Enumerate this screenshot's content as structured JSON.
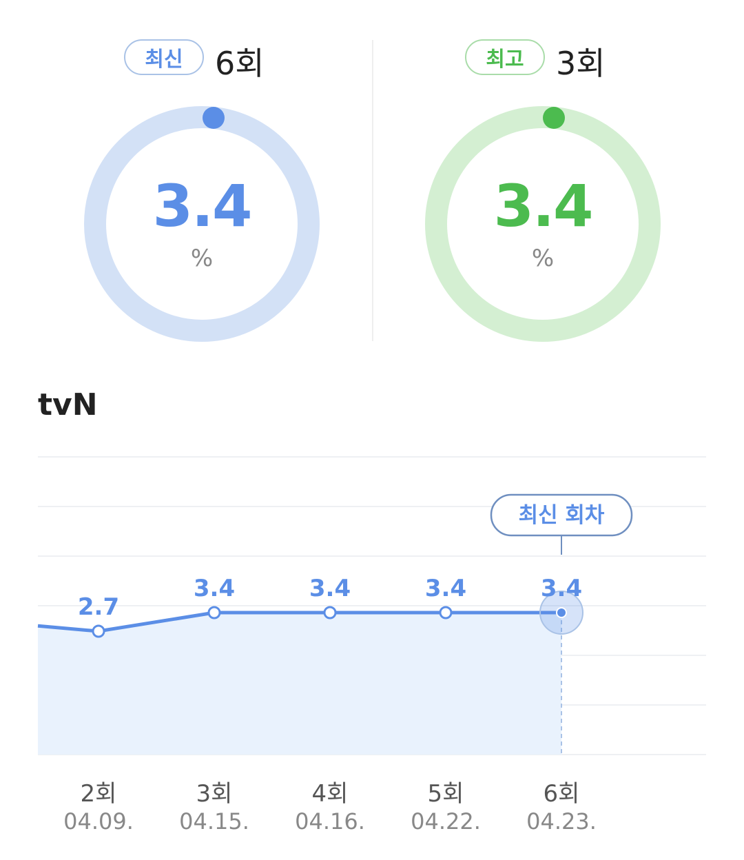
{
  "latest": {
    "badge": "최신",
    "episode": "6회",
    "value": "3.4",
    "unit": "%",
    "color": "#5b8ee6",
    "track": "#d3e1f6"
  },
  "best": {
    "badge": "최고",
    "episode": "3회",
    "value": "3.4",
    "unit": "%",
    "color": "#4cbb4f",
    "track": "#d4efd2"
  },
  "channel": "tvN",
  "chart_data": {
    "type": "area",
    "categories": [
      "2회",
      "3회",
      "4회",
      "5회",
      "6회"
    ],
    "dates": [
      "04.09.",
      "04.15.",
      "04.16.",
      "04.22.",
      "04.23."
    ],
    "values": [
      2.7,
      3.4,
      3.4,
      3.4,
      3.4
    ],
    "labels": [
      "2.7",
      "3.4",
      "3.4",
      "3.4",
      "3.4"
    ],
    "clipped_left_value": 2.9,
    "annotation": "최신 회차",
    "grid": true,
    "color": "#5b8ee6"
  }
}
